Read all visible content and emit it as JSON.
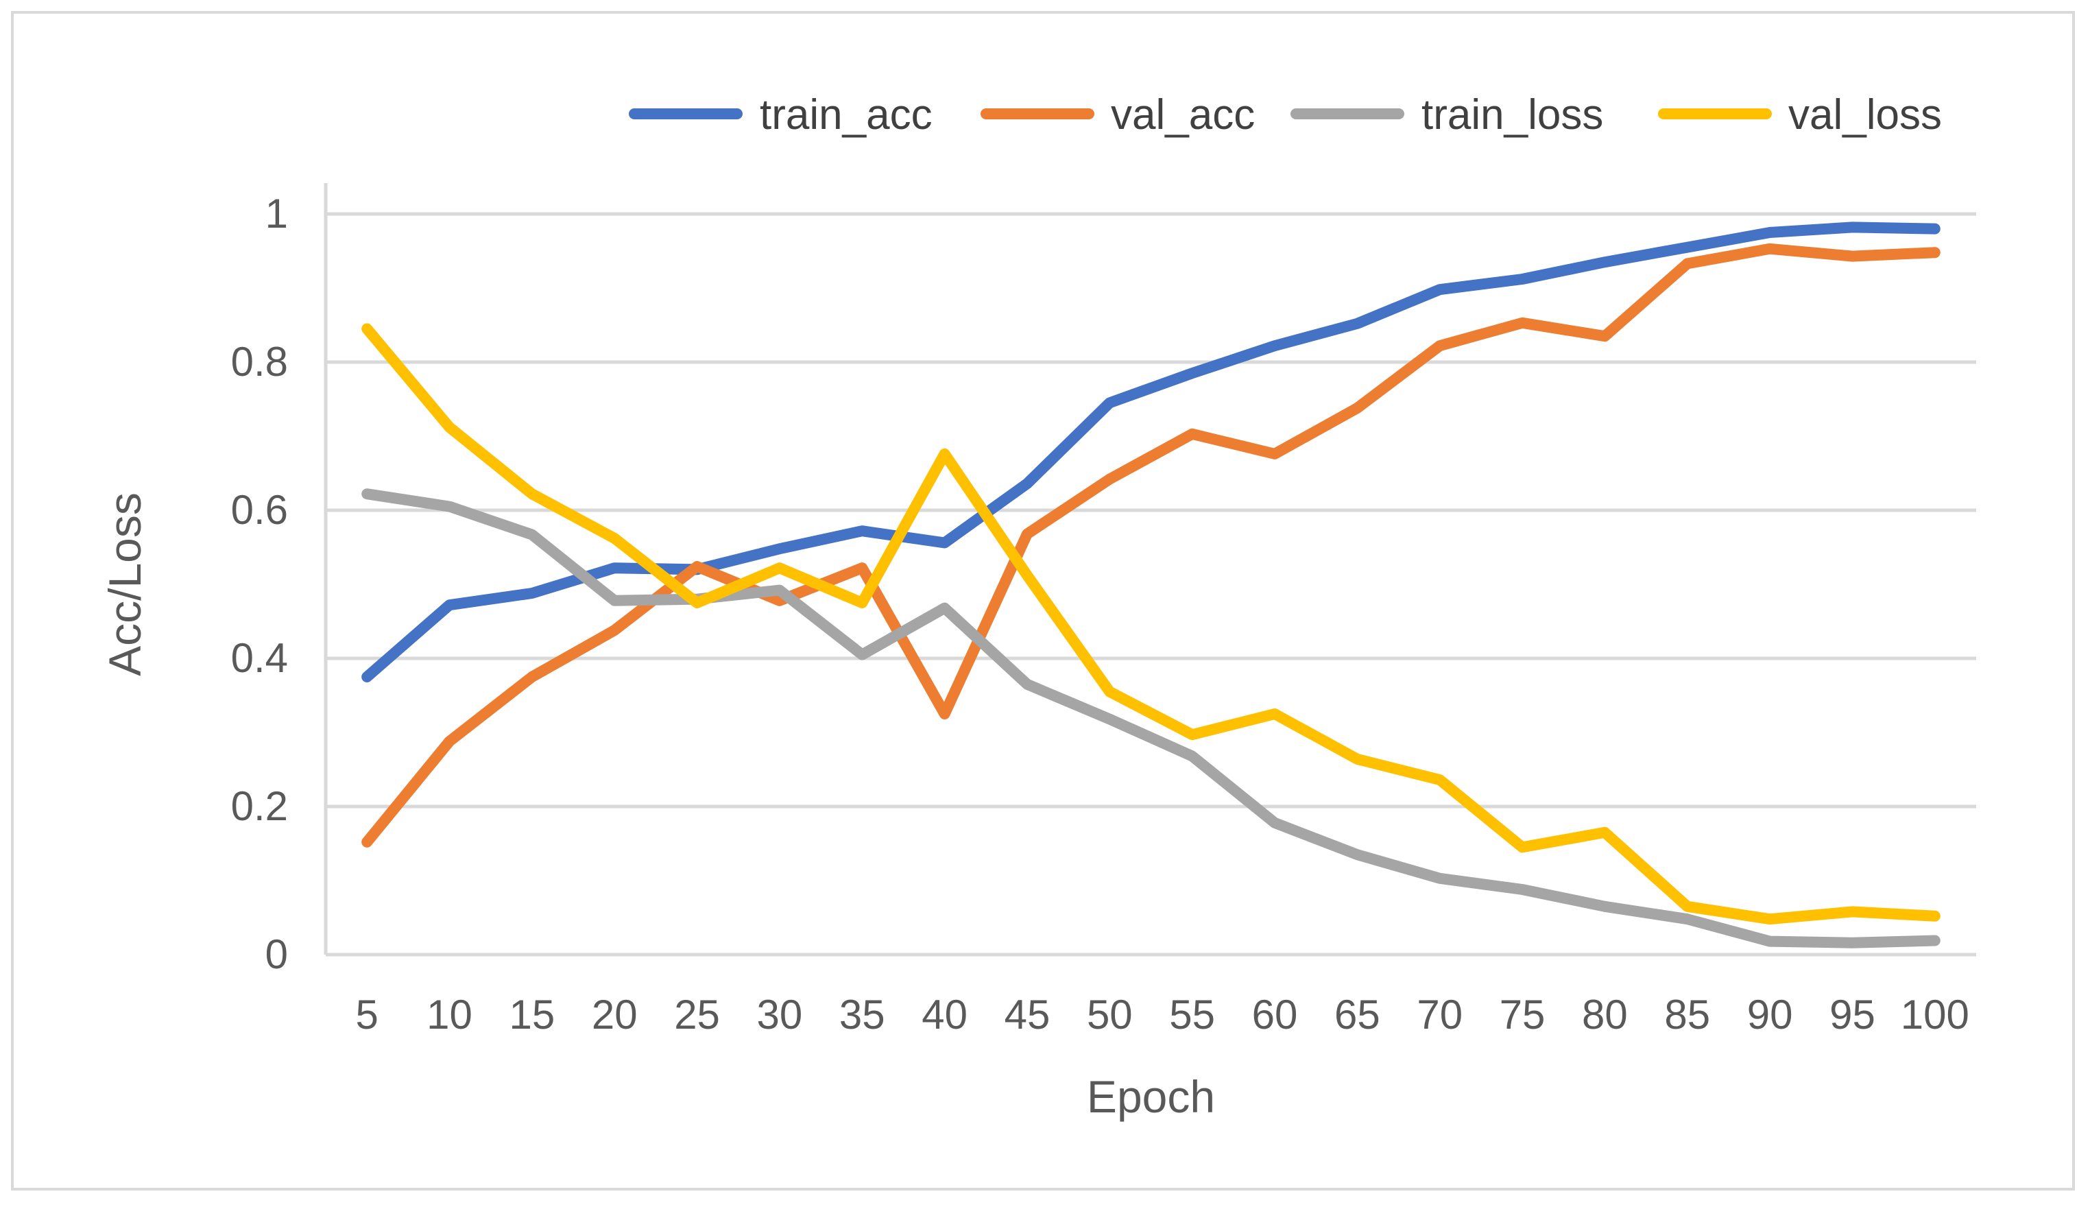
{
  "chart_data": {
    "type": "line",
    "title": "",
    "xlabel": "Epoch",
    "ylabel": "Acc/Loss",
    "categories": [
      "5",
      "10",
      "15",
      "20",
      "25",
      "30",
      "35",
      "40",
      "45",
      "50",
      "55",
      "60",
      "65",
      "70",
      "75",
      "80",
      "85",
      "90",
      "95",
      "100"
    ],
    "ylim": [
      0,
      1
    ],
    "yticks": [
      "0",
      "0.2",
      "0.4",
      "0.6",
      "0.8",
      "1"
    ],
    "grid": true,
    "legend_position": "top-right",
    "series": [
      {
        "name": "train_acc",
        "color": "#4472C4",
        "values": [
          0.375,
          0.472,
          0.488,
          0.522,
          0.52,
          0.548,
          0.572,
          0.556,
          0.636,
          0.745,
          0.785,
          0.822,
          0.852,
          0.898,
          0.912,
          0.935,
          0.955,
          0.975,
          0.982,
          0.98
        ]
      },
      {
        "name": "val_acc",
        "color": "#ED7D31",
        "values": [
          0.152,
          0.288,
          0.375,
          0.438,
          0.524,
          0.478,
          0.522,
          0.325,
          0.568,
          0.642,
          0.703,
          0.676,
          0.738,
          0.822,
          0.853,
          0.835,
          0.933,
          0.953,
          0.943,
          0.948
        ]
      },
      {
        "name": "train_loss",
        "color": "#A5A5A5",
        "values": [
          0.622,
          0.605,
          0.567,
          0.478,
          0.48,
          0.492,
          0.405,
          0.468,
          0.365,
          0.318,
          0.268,
          0.178,
          0.135,
          0.103,
          0.088,
          0.065,
          0.048,
          0.018,
          0.016,
          0.019
        ]
      },
      {
        "name": "val_loss",
        "color": "#FFC000",
        "values": [
          0.845,
          0.712,
          0.622,
          0.562,
          0.475,
          0.522,
          0.475,
          0.676,
          0.512,
          0.355,
          0.297,
          0.325,
          0.264,
          0.236,
          0.145,
          0.165,
          0.065,
          0.048,
          0.058,
          0.052
        ]
      }
    ]
  }
}
